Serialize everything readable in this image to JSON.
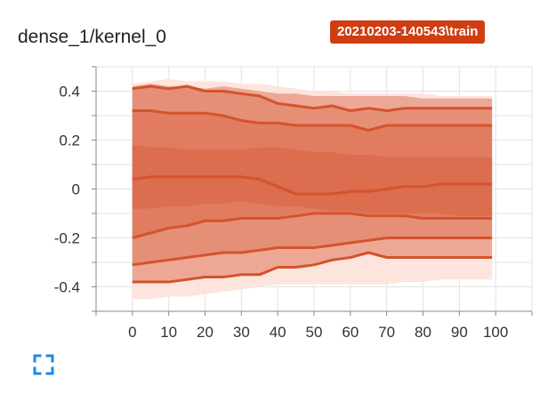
{
  "card": {
    "title": "dense_1/kernel_0",
    "run_label": "20210203-140543\\train",
    "run_color": "#cf3e12",
    "fullscreen_icon": "fullscreen-icon",
    "accent": "#1e88e5"
  },
  "chart_data": {
    "type": "area",
    "title": "dense_1/kernel_0",
    "xlabel": "",
    "ylabel": "",
    "xlim": [
      -10,
      110
    ],
    "ylim": [
      -0.5,
      0.5
    ],
    "x_ticks": [
      0,
      10,
      20,
      30,
      40,
      50,
      60,
      70,
      80,
      90,
      100
    ],
    "x_tick_labels": [
      "0",
      "10",
      "20",
      "30",
      "40",
      "50",
      "60",
      "70",
      "80",
      "90",
      "100"
    ],
    "y_ticks": [
      0.4,
      0.2,
      0,
      -0.2,
      -0.4
    ],
    "y_tick_labels": [
      "0.4",
      "0.2",
      "0",
      "-0.2",
      "-0.4"
    ],
    "grid": true,
    "x": [
      0,
      5,
      10,
      15,
      20,
      25,
      30,
      35,
      40,
      45,
      50,
      55,
      60,
      65,
      70,
      75,
      80,
      85,
      90,
      95,
      99
    ],
    "percentiles": [
      {
        "name": "max",
        "values": [
          0.42,
          0.43,
          0.42,
          0.42,
          0.41,
          0.42,
          0.41,
          0.4,
          0.39,
          0.39,
          0.38,
          0.38,
          0.38,
          0.38,
          0.38,
          0.38,
          0.37,
          0.37,
          0.37,
          0.37,
          0.37
        ]
      },
      {
        "name": "p93",
        "values": [
          0.41,
          0.42,
          0.41,
          0.42,
          0.4,
          0.4,
          0.39,
          0.38,
          0.35,
          0.34,
          0.33,
          0.34,
          0.32,
          0.33,
          0.32,
          0.33,
          0.33,
          0.33,
          0.33,
          0.33,
          0.33
        ]
      },
      {
        "name": "p84",
        "values": [
          0.32,
          0.32,
          0.31,
          0.31,
          0.31,
          0.3,
          0.28,
          0.27,
          0.27,
          0.26,
          0.26,
          0.26,
          0.26,
          0.24,
          0.26,
          0.26,
          0.26,
          0.26,
          0.26,
          0.26,
          0.26
        ]
      },
      {
        "name": "p69",
        "values": [
          0.18,
          0.17,
          0.17,
          0.16,
          0.16,
          0.16,
          0.16,
          0.17,
          0.17,
          0.16,
          0.15,
          0.15,
          0.14,
          0.14,
          0.13,
          0.13,
          0.13,
          0.13,
          0.13,
          0.13,
          0.13
        ]
      },
      {
        "name": "p50",
        "values": [
          0.04,
          0.05,
          0.05,
          0.05,
          0.05,
          0.05,
          0.05,
          0.04,
          0.01,
          -0.02,
          -0.02,
          -0.02,
          -0.01,
          -0.01,
          0.0,
          0.01,
          0.01,
          0.02,
          0.02,
          0.02,
          0.02
        ]
      },
      {
        "name": "p31",
        "values": [
          -0.08,
          -0.08,
          -0.07,
          -0.07,
          -0.06,
          -0.06,
          -0.05,
          -0.06,
          -0.07,
          -0.07,
          -0.08,
          -0.09,
          -0.09,
          -0.1,
          -0.1,
          -0.1,
          -0.1,
          -0.1,
          -0.11,
          -0.11,
          -0.11
        ]
      },
      {
        "name": "p16",
        "values": [
          -0.2,
          -0.18,
          -0.16,
          -0.15,
          -0.13,
          -0.13,
          -0.12,
          -0.12,
          -0.12,
          -0.11,
          -0.1,
          -0.1,
          -0.1,
          -0.11,
          -0.11,
          -0.11,
          -0.12,
          -0.12,
          -0.12,
          -0.12,
          -0.12
        ]
      },
      {
        "name": "p7",
        "values": [
          -0.31,
          -0.3,
          -0.29,
          -0.28,
          -0.27,
          -0.26,
          -0.26,
          -0.25,
          -0.24,
          -0.24,
          -0.24,
          -0.23,
          -0.22,
          -0.21,
          -0.2,
          -0.2,
          -0.2,
          -0.2,
          -0.2,
          -0.2,
          -0.2
        ]
      },
      {
        "name": "min",
        "values": [
          -0.38,
          -0.38,
          -0.38,
          -0.37,
          -0.36,
          -0.36,
          -0.35,
          -0.35,
          -0.32,
          -0.32,
          -0.31,
          -0.29,
          -0.28,
          -0.26,
          -0.28,
          -0.28,
          -0.28,
          -0.28,
          -0.28,
          -0.28,
          -0.28
        ]
      }
    ],
    "outer_band": {
      "upper": [
        0.43,
        0.44,
        0.45,
        0.44,
        0.44,
        0.44,
        0.43,
        0.43,
        0.42,
        0.41,
        0.4,
        0.4,
        0.39,
        0.39,
        0.39,
        0.39,
        0.39,
        0.38,
        0.38,
        0.38,
        0.38
      ],
      "lower": [
        -0.45,
        -0.45,
        -0.44,
        -0.44,
        -0.43,
        -0.42,
        -0.41,
        -0.4,
        -0.39,
        -0.39,
        -0.39,
        -0.39,
        -0.39,
        -0.39,
        -0.39,
        -0.38,
        -0.38,
        -0.37,
        -0.37,
        -0.37,
        -0.37
      ]
    },
    "colors": {
      "outer_fill": "#fde4dd",
      "band_fill": "#e59580",
      "inner_fill": "#d9603f",
      "line": "#d4532c",
      "grid": "#e3e3e3",
      "axis": "#888888"
    }
  }
}
